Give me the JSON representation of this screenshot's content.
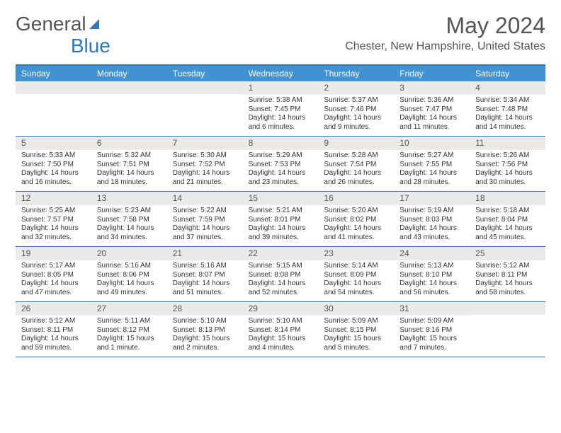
{
  "brand": {
    "part1": "General",
    "part2": "Blue"
  },
  "title": "May 2024",
  "location": "Chester, New Hampshire, United States",
  "colors": {
    "accent": "#2f76b8",
    "header_bg": "#4291d0",
    "daynum_bg": "#e9eaea",
    "text": "#333333",
    "muted": "#555555"
  },
  "day_labels": [
    "Sunday",
    "Monday",
    "Tuesday",
    "Wednesday",
    "Thursday",
    "Friday",
    "Saturday"
  ],
  "weeks": [
    [
      null,
      null,
      null,
      {
        "n": "1",
        "sr": "5:38 AM",
        "ss": "7:45 PM",
        "dl": "14 hours and 6 minutes."
      },
      {
        "n": "2",
        "sr": "5:37 AM",
        "ss": "7:46 PM",
        "dl": "14 hours and 9 minutes."
      },
      {
        "n": "3",
        "sr": "5:36 AM",
        "ss": "7:47 PM",
        "dl": "14 hours and 11 minutes."
      },
      {
        "n": "4",
        "sr": "5:34 AM",
        "ss": "7:48 PM",
        "dl": "14 hours and 14 minutes."
      }
    ],
    [
      {
        "n": "5",
        "sr": "5:33 AM",
        "ss": "7:50 PM",
        "dl": "14 hours and 16 minutes."
      },
      {
        "n": "6",
        "sr": "5:32 AM",
        "ss": "7:51 PM",
        "dl": "14 hours and 18 minutes."
      },
      {
        "n": "7",
        "sr": "5:30 AM",
        "ss": "7:52 PM",
        "dl": "14 hours and 21 minutes."
      },
      {
        "n": "8",
        "sr": "5:29 AM",
        "ss": "7:53 PM",
        "dl": "14 hours and 23 minutes."
      },
      {
        "n": "9",
        "sr": "5:28 AM",
        "ss": "7:54 PM",
        "dl": "14 hours and 26 minutes."
      },
      {
        "n": "10",
        "sr": "5:27 AM",
        "ss": "7:55 PM",
        "dl": "14 hours and 28 minutes."
      },
      {
        "n": "11",
        "sr": "5:26 AM",
        "ss": "7:56 PM",
        "dl": "14 hours and 30 minutes."
      }
    ],
    [
      {
        "n": "12",
        "sr": "5:25 AM",
        "ss": "7:57 PM",
        "dl": "14 hours and 32 minutes."
      },
      {
        "n": "13",
        "sr": "5:23 AM",
        "ss": "7:58 PM",
        "dl": "14 hours and 34 minutes."
      },
      {
        "n": "14",
        "sr": "5:22 AM",
        "ss": "7:59 PM",
        "dl": "14 hours and 37 minutes."
      },
      {
        "n": "15",
        "sr": "5:21 AM",
        "ss": "8:01 PM",
        "dl": "14 hours and 39 minutes."
      },
      {
        "n": "16",
        "sr": "5:20 AM",
        "ss": "8:02 PM",
        "dl": "14 hours and 41 minutes."
      },
      {
        "n": "17",
        "sr": "5:19 AM",
        "ss": "8:03 PM",
        "dl": "14 hours and 43 minutes."
      },
      {
        "n": "18",
        "sr": "5:18 AM",
        "ss": "8:04 PM",
        "dl": "14 hours and 45 minutes."
      }
    ],
    [
      {
        "n": "19",
        "sr": "5:17 AM",
        "ss": "8:05 PM",
        "dl": "14 hours and 47 minutes."
      },
      {
        "n": "20",
        "sr": "5:16 AM",
        "ss": "8:06 PM",
        "dl": "14 hours and 49 minutes."
      },
      {
        "n": "21",
        "sr": "5:16 AM",
        "ss": "8:07 PM",
        "dl": "14 hours and 51 minutes."
      },
      {
        "n": "22",
        "sr": "5:15 AM",
        "ss": "8:08 PM",
        "dl": "14 hours and 52 minutes."
      },
      {
        "n": "23",
        "sr": "5:14 AM",
        "ss": "8:09 PM",
        "dl": "14 hours and 54 minutes."
      },
      {
        "n": "24",
        "sr": "5:13 AM",
        "ss": "8:10 PM",
        "dl": "14 hours and 56 minutes."
      },
      {
        "n": "25",
        "sr": "5:12 AM",
        "ss": "8:11 PM",
        "dl": "14 hours and 58 minutes."
      }
    ],
    [
      {
        "n": "26",
        "sr": "5:12 AM",
        "ss": "8:11 PM",
        "dl": "14 hours and 59 minutes."
      },
      {
        "n": "27",
        "sr": "5:11 AM",
        "ss": "8:12 PM",
        "dl": "15 hours and 1 minute."
      },
      {
        "n": "28",
        "sr": "5:10 AM",
        "ss": "8:13 PM",
        "dl": "15 hours and 2 minutes."
      },
      {
        "n": "29",
        "sr": "5:10 AM",
        "ss": "8:14 PM",
        "dl": "15 hours and 4 minutes."
      },
      {
        "n": "30",
        "sr": "5:09 AM",
        "ss": "8:15 PM",
        "dl": "15 hours and 5 minutes."
      },
      {
        "n": "31",
        "sr": "5:09 AM",
        "ss": "8:16 PM",
        "dl": "15 hours and 7 minutes."
      },
      null
    ]
  ],
  "labels": {
    "sunrise": "Sunrise:",
    "sunset": "Sunset:",
    "daylight": "Daylight:"
  }
}
